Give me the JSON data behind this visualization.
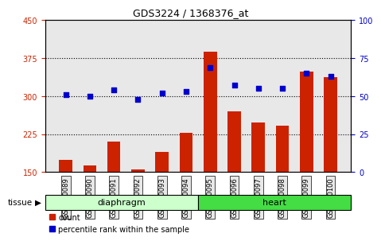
{
  "title": "GDS3224 / 1368376_at",
  "samples": [
    "GSM160089",
    "GSM160090",
    "GSM160091",
    "GSM160092",
    "GSM160093",
    "GSM160094",
    "GSM160095",
    "GSM160096",
    "GSM160097",
    "GSM160098",
    "GSM160099",
    "GSM160100"
  ],
  "count_values": [
    175,
    163,
    210,
    155,
    190,
    228,
    388,
    270,
    248,
    242,
    348,
    338
  ],
  "percentile_values": [
    51,
    50,
    54,
    48,
    52,
    53,
    69,
    57,
    55,
    55,
    65,
    63
  ],
  "groups": [
    {
      "label": "diaphragm",
      "start": 0,
      "end": 6,
      "color": "#ccffcc"
    },
    {
      "label": "heart",
      "start": 6,
      "end": 12,
      "color": "#44dd44"
    }
  ],
  "bar_color": "#cc2200",
  "dot_color": "#0000cc",
  "left_ylim": [
    150,
    450
  ],
  "right_ylim": [
    0,
    100
  ],
  "left_yticks": [
    150,
    225,
    300,
    375,
    450
  ],
  "right_yticks": [
    0,
    25,
    50,
    75,
    100
  ],
  "left_color": "#cc2200",
  "right_color": "#0000cc",
  "bg_color": "#e8e8e8",
  "bar_width": 0.55,
  "legend_items": [
    {
      "label": "count",
      "color": "#cc2200"
    },
    {
      "label": "percentile rank within the sample",
      "color": "#0000cc"
    }
  ]
}
